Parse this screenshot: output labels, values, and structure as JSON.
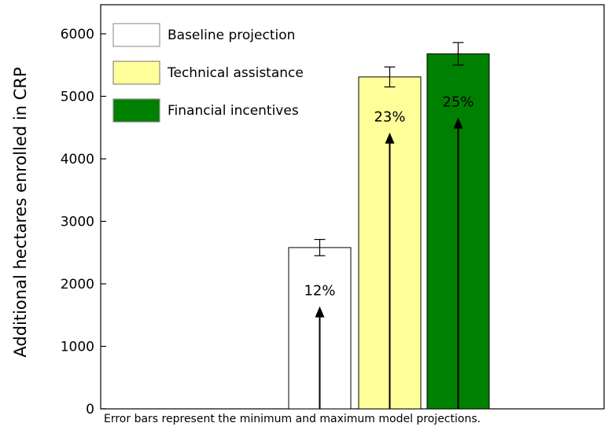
{
  "chart_data": {
    "type": "bar",
    "ylabel": "Additional hectares enrolled in CRP",
    "xlabel": "",
    "ylim": [
      0,
      6500
    ],
    "yticks": [
      0,
      1000,
      2000,
      3000,
      4000,
      5000,
      6000
    ],
    "grid": false,
    "legend_position": "top-left",
    "series": [
      {
        "name": "Baseline projection",
        "value": 2580,
        "err_min": 2450,
        "err_max": 2710,
        "color": "#ffffff",
        "percent_label": "12%",
        "arrow_top": 1640
      },
      {
        "name": "Technical assistance",
        "value": 5310,
        "err_min": 5150,
        "err_max": 5470,
        "color": "#ffff99",
        "percent_label": "23%",
        "arrow_top": 4420
      },
      {
        "name": "Financial incentives",
        "value": 5680,
        "err_min": 5500,
        "err_max": 5860,
        "color": "#008000",
        "percent_label": "25%",
        "arrow_top": 4660
      }
    ]
  },
  "note": "Error bars represent the minimum and maximum model projections."
}
